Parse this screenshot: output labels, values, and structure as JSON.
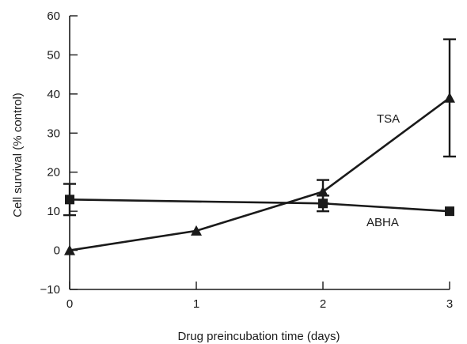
{
  "chart_data": {
    "type": "line",
    "title": "",
    "xlabel": "Drug preincubation time (days)",
    "ylabel": "Cell survival (% control)",
    "xlim": [
      0,
      3
    ],
    "ylim": [
      -10,
      60
    ],
    "x_ticks": [
      0,
      1,
      2,
      3
    ],
    "y_ticks": [
      -10,
      0,
      10,
      20,
      30,
      40,
      50,
      60
    ],
    "x_tick_labels": [
      "0",
      "1",
      "2",
      "3"
    ],
    "y_tick_labels": [
      "−10",
      "0",
      "10",
      "20",
      "30",
      "40",
      "50",
      "60"
    ],
    "grid": false,
    "legend": "none",
    "series": [
      {
        "name": "TSA",
        "marker": "triangle",
        "color": "#1a1a1a",
        "x": [
          0,
          1,
          2,
          3
        ],
        "y": [
          0,
          5,
          15,
          39
        ],
        "error": [
          null,
          null,
          3,
          15
        ]
      },
      {
        "name": "ABHA",
        "marker": "square",
        "color": "#1a1a1a",
        "x": [
          0,
          2,
          3
        ],
        "y": [
          13,
          12,
          10
        ],
        "error": [
          4,
          2,
          null
        ]
      }
    ],
    "annotations": [
      {
        "text": "TSA",
        "series": "TSA"
      },
      {
        "text": "ABHA",
        "series": "ABHA"
      }
    ]
  }
}
